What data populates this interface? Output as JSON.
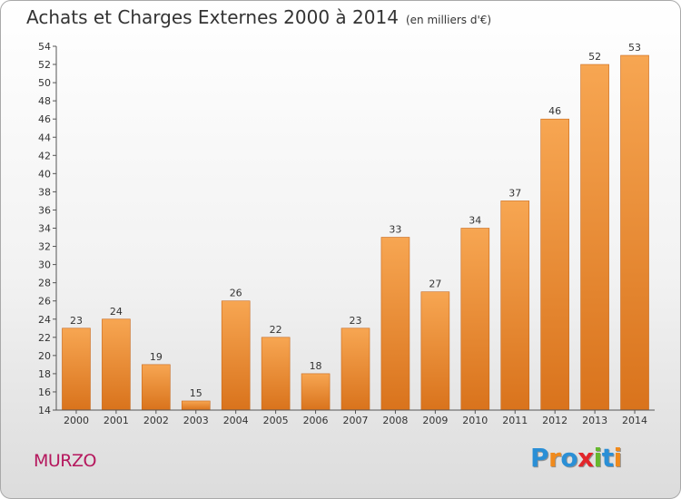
{
  "header": {
    "title": "Achats et Charges Externes 2000 à 2014",
    "subtitle": "(en milliers d'€)"
  },
  "commune": "MURZO",
  "logo": {
    "letters": [
      "P",
      "r",
      "o",
      "x",
      "i",
      "t",
      "i"
    ],
    "colors": [
      "#2a8fd6",
      "#f08a1c",
      "#2a8fd6",
      "#e2262b",
      "#66b82e",
      "#2a8fd6",
      "#f08a1c"
    ]
  },
  "colors": {
    "bar_top": "#f7a652",
    "bar_bottom": "#d9731c",
    "bar_edge": "#c9681a"
  },
  "chart_data": {
    "type": "bar",
    "categories": [
      "2000",
      "2001",
      "2002",
      "2003",
      "2004",
      "2005",
      "2006",
      "2007",
      "2008",
      "2009",
      "2010",
      "2011",
      "2012",
      "2013",
      "2014"
    ],
    "values": [
      23,
      24,
      19,
      15,
      26,
      22,
      18,
      23,
      33,
      27,
      34,
      37,
      46,
      52,
      53
    ],
    "ylim": [
      14,
      54
    ],
    "yticks": [
      14,
      16,
      18,
      20,
      22,
      24,
      26,
      28,
      30,
      32,
      34,
      36,
      38,
      40,
      42,
      44,
      46,
      48,
      50,
      52,
      54
    ],
    "data_labels": true,
    "grid": false
  }
}
